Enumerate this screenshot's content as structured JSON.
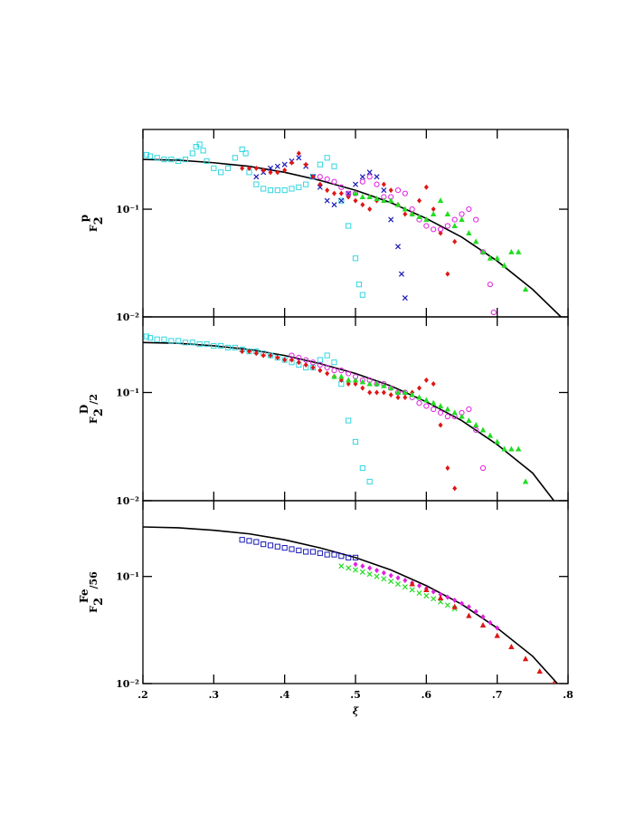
{
  "chart_data": [
    {
      "type": "scatter",
      "ylabel": {
        "base": "F",
        "sub": "2",
        "sup": "p"
      },
      "xlim": [
        0.2,
        0.8
      ],
      "ylim": [
        0.01,
        0.55
      ],
      "log_y": true,
      "yticks": [
        {
          "value": 0.1,
          "label": "10⁻¹"
        },
        {
          "value": 0.01,
          "label": "10⁻²"
        }
      ],
      "series": [
        {
          "color": "#000000",
          "mode": "line",
          "x": [
            0.2,
            0.25,
            0.3,
            0.35,
            0.4,
            0.45,
            0.5,
            0.55,
            0.6,
            0.65,
            0.7,
            0.75,
            0.79
          ],
          "values": [
            0.29,
            0.285,
            0.27,
            0.25,
            0.22,
            0.185,
            0.15,
            0.115,
            0.082,
            0.055,
            0.033,
            0.018,
            0.01
          ]
        },
        {
          "color": "#33d6e0",
          "marker": "square",
          "x": [
            0.205,
            0.21,
            0.22,
            0.23,
            0.24,
            0.25,
            0.26,
            0.27,
            0.275,
            0.28,
            0.285,
            0.29,
            0.3,
            0.31,
            0.32,
            0.33,
            0.34,
            0.345,
            0.35,
            0.36,
            0.37,
            0.38,
            0.39,
            0.4,
            0.41,
            0.42,
            0.43,
            0.44,
            0.45,
            0.46,
            0.47,
            0.48,
            0.49,
            0.5,
            0.505,
            0.51
          ],
          "values": [
            0.32,
            0.31,
            0.3,
            0.29,
            0.29,
            0.28,
            0.29,
            0.33,
            0.38,
            0.4,
            0.35,
            0.28,
            0.24,
            0.22,
            0.24,
            0.3,
            0.36,
            0.33,
            0.22,
            0.17,
            0.155,
            0.15,
            0.15,
            0.15,
            0.155,
            0.16,
            0.17,
            0.2,
            0.26,
            0.3,
            0.25,
            0.12,
            0.07,
            0.035,
            0.02,
            0.016
          ]
        },
        {
          "color": "#1a1ab8",
          "marker": "cross",
          "x": [
            0.36,
            0.37,
            0.38,
            0.39,
            0.4,
            0.41,
            0.42,
            0.43,
            0.44,
            0.45,
            0.46,
            0.47,
            0.48,
            0.49,
            0.5,
            0.51,
            0.52,
            0.53,
            0.54,
            0.55,
            0.56,
            0.565,
            0.57
          ],
          "values": [
            0.2,
            0.22,
            0.24,
            0.25,
            0.26,
            0.28,
            0.3,
            0.25,
            0.2,
            0.16,
            0.12,
            0.11,
            0.12,
            0.14,
            0.17,
            0.2,
            0.22,
            0.2,
            0.15,
            0.08,
            0.045,
            0.025,
            0.015
          ]
        },
        {
          "color": "#e01515",
          "marker": "diamond",
          "x": [
            0.34,
            0.35,
            0.36,
            0.37,
            0.38,
            0.39,
            0.4,
            0.41,
            0.42,
            0.43,
            0.44,
            0.45,
            0.46,
            0.47,
            0.48,
            0.49,
            0.5,
            0.51,
            0.52,
            0.53,
            0.54,
            0.55,
            0.56,
            0.57,
            0.58,
            0.59,
            0.6,
            0.61,
            0.62,
            0.63,
            0.64
          ],
          "values": [
            0.24,
            0.24,
            0.24,
            0.23,
            0.22,
            0.22,
            0.23,
            0.27,
            0.33,
            0.26,
            0.2,
            0.17,
            0.15,
            0.14,
            0.14,
            0.13,
            0.12,
            0.11,
            0.1,
            0.12,
            0.17,
            0.15,
            0.11,
            0.09,
            0.09,
            0.12,
            0.16,
            0.1,
            0.06,
            0.025,
            0.05
          ]
        },
        {
          "color": "#e020e0",
          "marker": "circle",
          "x": [
            0.45,
            0.46,
            0.47,
            0.48,
            0.49,
            0.5,
            0.51,
            0.52,
            0.53,
            0.54,
            0.55,
            0.56,
            0.57,
            0.58,
            0.59,
            0.6,
            0.61,
            0.62,
            0.63,
            0.64,
            0.65,
            0.66,
            0.67,
            0.68,
            0.69,
            0.695
          ],
          "values": [
            0.2,
            0.19,
            0.18,
            0.16,
            0.14,
            0.14,
            0.18,
            0.2,
            0.17,
            0.13,
            0.13,
            0.15,
            0.14,
            0.1,
            0.08,
            0.07,
            0.065,
            0.065,
            0.07,
            0.08,
            0.09,
            0.1,
            0.08,
            0.04,
            0.02,
            0.011
          ]
        },
        {
          "color": "#22dd22",
          "marker": "triangle",
          "x": [
            0.5,
            0.51,
            0.52,
            0.53,
            0.54,
            0.55,
            0.56,
            0.57,
            0.58,
            0.59,
            0.6,
            0.61,
            0.62,
            0.63,
            0.64,
            0.65,
            0.66,
            0.67,
            0.68,
            0.69,
            0.7,
            0.71,
            0.72,
            0.73,
            0.74
          ],
          "values": [
            0.14,
            0.13,
            0.13,
            0.125,
            0.12,
            0.12,
            0.11,
            0.1,
            0.09,
            0.085,
            0.08,
            0.09,
            0.12,
            0.09,
            0.07,
            0.08,
            0.06,
            0.05,
            0.04,
            0.035,
            0.035,
            0.03,
            0.04,
            0.04,
            0.018
          ]
        }
      ]
    },
    {
      "type": "scatter",
      "ylabel": {
        "base": "F",
        "sub": "2",
        "sup": "D",
        "suffix": "/2"
      },
      "xlim": [
        0.2,
        0.8
      ],
      "ylim": [
        0.01,
        0.5
      ],
      "log_y": true,
      "yticks": [
        {
          "value": 0.1,
          "label": "10⁻¹"
        },
        {
          "value": 0.01,
          "label": "10⁻²"
        }
      ],
      "series": [
        {
          "color": "#000000",
          "mode": "line",
          "x": [
            0.2,
            0.25,
            0.3,
            0.35,
            0.4,
            0.45,
            0.5,
            0.55,
            0.6,
            0.65,
            0.7,
            0.75,
            0.78
          ],
          "values": [
            0.29,
            0.285,
            0.27,
            0.25,
            0.22,
            0.185,
            0.15,
            0.115,
            0.082,
            0.055,
            0.033,
            0.018,
            0.01
          ]
        },
        {
          "color": "#33d6e0",
          "marker": "square",
          "x": [
            0.205,
            0.21,
            0.22,
            0.23,
            0.24,
            0.25,
            0.26,
            0.27,
            0.28,
            0.29,
            0.3,
            0.31,
            0.32,
            0.33,
            0.34,
            0.35,
            0.36,
            0.37,
            0.38,
            0.39,
            0.4,
            0.41,
            0.42,
            0.43,
            0.44,
            0.45,
            0.46,
            0.47,
            0.48,
            0.49,
            0.5,
            0.51,
            0.52
          ],
          "values": [
            0.33,
            0.32,
            0.31,
            0.31,
            0.3,
            0.3,
            0.29,
            0.29,
            0.28,
            0.28,
            0.27,
            0.27,
            0.26,
            0.26,
            0.25,
            0.24,
            0.24,
            0.23,
            0.22,
            0.21,
            0.2,
            0.19,
            0.18,
            0.17,
            0.17,
            0.2,
            0.22,
            0.19,
            0.12,
            0.055,
            0.035,
            0.02,
            0.015
          ]
        },
        {
          "color": "#e01515",
          "marker": "diamond",
          "x": [
            0.34,
            0.35,
            0.36,
            0.37,
            0.38,
            0.39,
            0.4,
            0.41,
            0.42,
            0.43,
            0.44,
            0.45,
            0.46,
            0.47,
            0.48,
            0.49,
            0.5,
            0.51,
            0.52,
            0.53,
            0.54,
            0.55,
            0.56,
            0.57,
            0.58,
            0.59,
            0.6,
            0.61,
            0.62,
            0.63,
            0.64
          ],
          "values": [
            0.24,
            0.24,
            0.23,
            0.22,
            0.22,
            0.21,
            0.2,
            0.2,
            0.19,
            0.18,
            0.17,
            0.16,
            0.15,
            0.14,
            0.13,
            0.12,
            0.12,
            0.11,
            0.1,
            0.1,
            0.1,
            0.095,
            0.09,
            0.09,
            0.1,
            0.11,
            0.13,
            0.12,
            0.05,
            0.02,
            0.013
          ]
        },
        {
          "color": "#e020e0",
          "marker": "circle",
          "x": [
            0.41,
            0.42,
            0.43,
            0.44,
            0.45,
            0.46,
            0.47,
            0.48,
            0.49,
            0.5,
            0.51,
            0.52,
            0.53,
            0.54,
            0.55,
            0.56,
            0.57,
            0.58,
            0.59,
            0.6,
            0.61,
            0.62,
            0.63,
            0.64,
            0.65,
            0.66,
            0.67,
            0.68
          ],
          "values": [
            0.22,
            0.21,
            0.2,
            0.19,
            0.18,
            0.17,
            0.16,
            0.16,
            0.15,
            0.14,
            0.13,
            0.13,
            0.12,
            0.12,
            0.11,
            0.1,
            0.1,
            0.09,
            0.08,
            0.075,
            0.07,
            0.065,
            0.06,
            0.06,
            0.065,
            0.07,
            0.045,
            0.02
          ]
        },
        {
          "color": "#22dd22",
          "marker": "triangle",
          "x": [
            0.47,
            0.48,
            0.49,
            0.5,
            0.51,
            0.52,
            0.53,
            0.54,
            0.55,
            0.56,
            0.57,
            0.58,
            0.59,
            0.6,
            0.61,
            0.62,
            0.63,
            0.64,
            0.65,
            0.66,
            0.67,
            0.68,
            0.69,
            0.7,
            0.71,
            0.72,
            0.73,
            0.74
          ],
          "values": [
            0.14,
            0.14,
            0.13,
            0.13,
            0.125,
            0.12,
            0.12,
            0.115,
            0.11,
            0.1,
            0.1,
            0.095,
            0.09,
            0.085,
            0.08,
            0.075,
            0.07,
            0.065,
            0.06,
            0.055,
            0.05,
            0.045,
            0.04,
            0.035,
            0.03,
            0.03,
            0.03,
            0.015
          ]
        }
      ]
    },
    {
      "type": "scatter",
      "ylabel": {
        "base": "F",
        "sub": "2",
        "sup": "Fe",
        "suffix": "/56"
      },
      "xlabel": "ξ",
      "xlim": [
        0.2,
        0.8
      ],
      "ylim": [
        0.01,
        0.51
      ],
      "log_y": true,
      "xticks": [
        {
          "value": 0.2,
          "label": ".2"
        },
        {
          "value": 0.3,
          "label": ".3"
        },
        {
          "value": 0.4,
          "label": ".4"
        },
        {
          "value": 0.5,
          "label": ".5"
        },
        {
          "value": 0.6,
          "label": ".6"
        },
        {
          "value": 0.7,
          "label": ".7"
        },
        {
          "value": 0.8,
          "label": ".8"
        }
      ],
      "yticks": [
        {
          "value": 0.1,
          "label": "10⁻¹"
        },
        {
          "value": 0.01,
          "label": "10⁻²"
        }
      ],
      "series": [
        {
          "color": "#000000",
          "mode": "line",
          "x": [
            0.2,
            0.25,
            0.3,
            0.35,
            0.4,
            0.45,
            0.5,
            0.55,
            0.6,
            0.65,
            0.7,
            0.75,
            0.785
          ],
          "values": [
            0.29,
            0.285,
            0.27,
            0.25,
            0.22,
            0.185,
            0.15,
            0.115,
            0.082,
            0.055,
            0.033,
            0.018,
            0.01
          ]
        },
        {
          "color": "#1a1ab8",
          "marker": "square",
          "x": [
            0.34,
            0.35,
            0.36,
            0.37,
            0.38,
            0.39,
            0.4,
            0.41,
            0.42,
            0.43,
            0.44,
            0.45,
            0.46,
            0.47,
            0.48,
            0.49,
            0.5
          ],
          "values": [
            0.22,
            0.215,
            0.21,
            0.2,
            0.195,
            0.19,
            0.185,
            0.18,
            0.175,
            0.17,
            0.17,
            0.165,
            0.16,
            0.16,
            0.155,
            0.15,
            0.15
          ]
        },
        {
          "color": "#22dd22",
          "marker": "cross",
          "x": [
            0.48,
            0.49,
            0.5,
            0.51,
            0.52,
            0.53,
            0.54,
            0.55,
            0.56,
            0.57,
            0.58,
            0.59,
            0.6,
            0.61,
            0.62,
            0.63,
            0.64
          ],
          "values": [
            0.125,
            0.12,
            0.115,
            0.11,
            0.105,
            0.1,
            0.095,
            0.09,
            0.085,
            0.08,
            0.075,
            0.07,
            0.066,
            0.062,
            0.058,
            0.054,
            0.05
          ]
        },
        {
          "color": "#e020e0",
          "marker": "diamond",
          "x": [
            0.5,
            0.51,
            0.52,
            0.53,
            0.54,
            0.55,
            0.56,
            0.57,
            0.58,
            0.59,
            0.6,
            0.61,
            0.62,
            0.63,
            0.64,
            0.65,
            0.66,
            0.67,
            0.68,
            0.69,
            0.7
          ],
          "values": [
            0.13,
            0.125,
            0.12,
            0.114,
            0.108,
            0.102,
            0.097,
            0.092,
            0.087,
            0.082,
            0.077,
            0.072,
            0.068,
            0.064,
            0.06,
            0.056,
            0.052,
            0.047,
            0.042,
            0.037,
            0.033
          ]
        },
        {
          "color": "#e01515",
          "marker": "triangle",
          "x": [
            0.58,
            0.6,
            0.62,
            0.64,
            0.66,
            0.68,
            0.7,
            0.72,
            0.74,
            0.76,
            0.78
          ],
          "values": [
            0.085,
            0.075,
            0.063,
            0.052,
            0.043,
            0.035,
            0.028,
            0.022,
            0.017,
            0.013,
            0.01
          ]
        }
      ]
    }
  ]
}
